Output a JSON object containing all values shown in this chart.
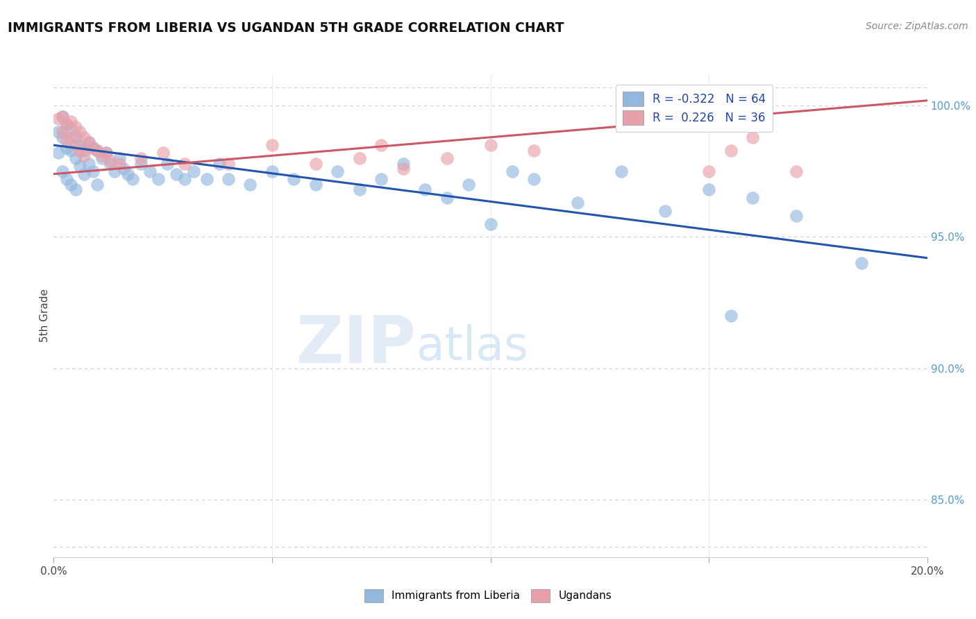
{
  "title": "IMMIGRANTS FROM LIBERIA VS UGANDAN 5TH GRADE CORRELATION CHART",
  "source_text": "Source: ZipAtlas.com",
  "ylabel": "5th Grade",
  "x_min": 0.0,
  "x_max": 0.2,
  "y_min": 0.828,
  "y_max": 1.012,
  "y_ticks": [
    0.85,
    0.9,
    0.95,
    1.0
  ],
  "y_tick_labels": [
    "85.0%",
    "90.0%",
    "95.0%",
    "100.0%"
  ],
  "blue_R": -0.322,
  "blue_N": 64,
  "pink_R": 0.226,
  "pink_N": 36,
  "blue_color": "#92b8de",
  "pink_color": "#e8a0aa",
  "blue_line_color": "#2255aa",
  "pink_line_color": "#cc5566",
  "legend_label_blue": "Immigrants from Liberia",
  "legend_label_pink": "Ugandans",
  "blue_trend_x": [
    0.0,
    0.2
  ],
  "blue_trend_y": [
    0.985,
    0.942
  ],
  "pink_trend_x": [
    0.0,
    0.2
  ],
  "pink_trend_y": [
    0.974,
    1.002
  ],
  "blue_x": [
    0.001,
    0.001,
    0.002,
    0.002,
    0.002,
    0.003,
    0.003,
    0.003,
    0.004,
    0.004,
    0.004,
    0.005,
    0.005,
    0.005,
    0.006,
    0.006,
    0.007,
    0.007,
    0.008,
    0.008,
    0.009,
    0.009,
    0.01,
    0.01,
    0.011,
    0.012,
    0.013,
    0.014,
    0.015,
    0.016,
    0.017,
    0.018,
    0.02,
    0.022,
    0.024,
    0.026,
    0.028,
    0.03,
    0.032,
    0.035,
    0.038,
    0.04,
    0.045,
    0.05,
    0.055,
    0.06,
    0.065,
    0.07,
    0.075,
    0.08,
    0.085,
    0.09,
    0.095,
    0.1,
    0.105,
    0.11,
    0.12,
    0.13,
    0.14,
    0.15,
    0.155,
    0.16,
    0.17,
    0.185
  ],
  "blue_y": [
    0.99,
    0.982,
    0.996,
    0.988,
    0.975,
    0.993,
    0.984,
    0.972,
    0.991,
    0.983,
    0.97,
    0.988,
    0.98,
    0.968,
    0.985,
    0.977,
    0.983,
    0.974,
    0.986,
    0.978,
    0.984,
    0.975,
    0.983,
    0.97,
    0.98,
    0.982,
    0.978,
    0.975,
    0.98,
    0.976,
    0.974,
    0.972,
    0.978,
    0.975,
    0.972,
    0.978,
    0.974,
    0.972,
    0.975,
    0.972,
    0.978,
    0.972,
    0.97,
    0.975,
    0.972,
    0.97,
    0.975,
    0.968,
    0.972,
    0.978,
    0.968,
    0.965,
    0.97,
    0.955,
    0.975,
    0.972,
    0.963,
    0.975,
    0.96,
    0.968,
    0.92,
    0.965,
    0.958,
    0.94
  ],
  "pink_x": [
    0.001,
    0.002,
    0.002,
    0.003,
    0.003,
    0.004,
    0.004,
    0.005,
    0.005,
    0.006,
    0.006,
    0.007,
    0.007,
    0.008,
    0.009,
    0.01,
    0.011,
    0.012,
    0.013,
    0.015,
    0.02,
    0.025,
    0.03,
    0.04,
    0.05,
    0.06,
    0.07,
    0.075,
    0.08,
    0.09,
    0.1,
    0.11,
    0.15,
    0.155,
    0.16,
    0.17
  ],
  "pink_y": [
    0.995,
    0.996,
    0.99,
    0.993,
    0.987,
    0.994,
    0.988,
    0.992,
    0.985,
    0.99,
    0.983,
    0.988,
    0.981,
    0.986,
    0.984,
    0.983,
    0.981,
    0.982,
    0.979,
    0.978,
    0.98,
    0.982,
    0.978,
    0.978,
    0.985,
    0.978,
    0.98,
    0.985,
    0.976,
    0.98,
    0.985,
    0.983,
    0.975,
    0.983,
    0.988,
    0.975
  ]
}
